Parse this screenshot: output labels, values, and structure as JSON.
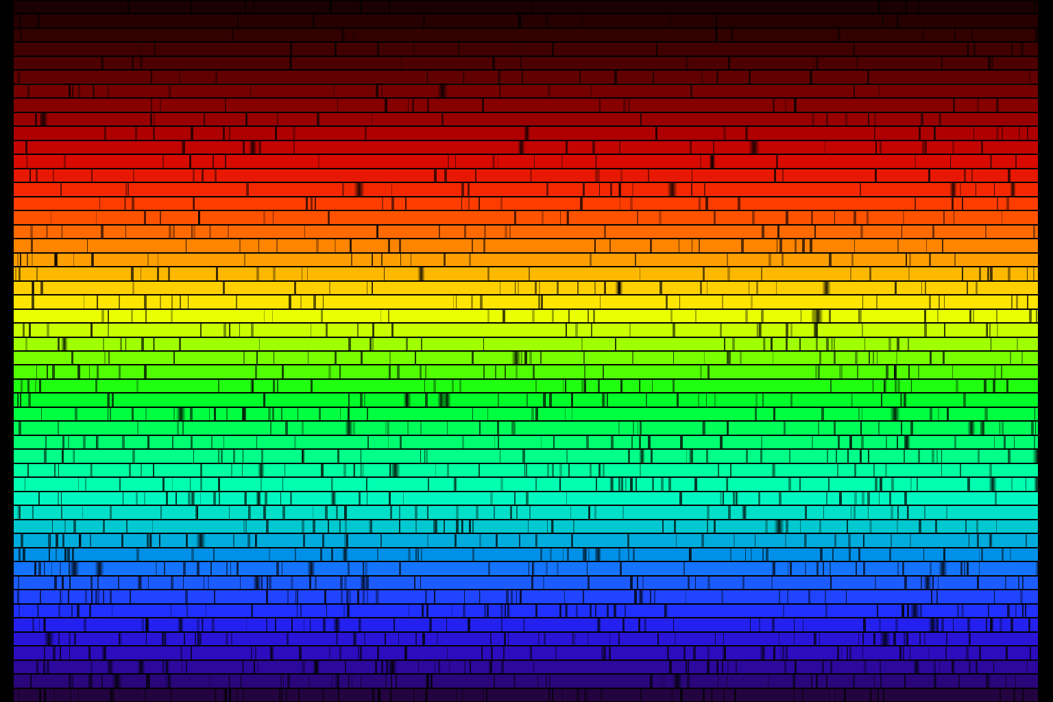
{
  "image": {
    "subject": "solar spectrum",
    "strip_count": 50,
    "background_color": "#000000",
    "strip_colors": [
      "#1a0000",
      "#260000",
      "#330000",
      "#400000",
      "#4d0000",
      "#600000",
      "#740000",
      "#860000",
      "#980000",
      "#ae0000",
      "#c40400",
      "#d80a00",
      "#e81800",
      "#f42800",
      "#ff3c00",
      "#ff5200",
      "#ff6a00",
      "#ff8400",
      "#ff9e00",
      "#ffb800",
      "#ffd000",
      "#ffe400",
      "#eaff00",
      "#c8ff00",
      "#a0ff00",
      "#78ff00",
      "#50ff00",
      "#20ff10",
      "#00ff28",
      "#00ff40",
      "#00ff58",
      "#00ff70",
      "#00ff88",
      "#00ffa0",
      "#00ffb0",
      "#00f8c0",
      "#00e0c8",
      "#00c8d0",
      "#00acdc",
      "#0090e8",
      "#1474ff",
      "#1c5cff",
      "#2044ff",
      "#2030ff",
      "#2420f0",
      "#2a14d8",
      "#2c0cbc",
      "#2c089c",
      "#2a067a",
      "#240440"
    ],
    "absorption_line_color": "#000000"
  }
}
